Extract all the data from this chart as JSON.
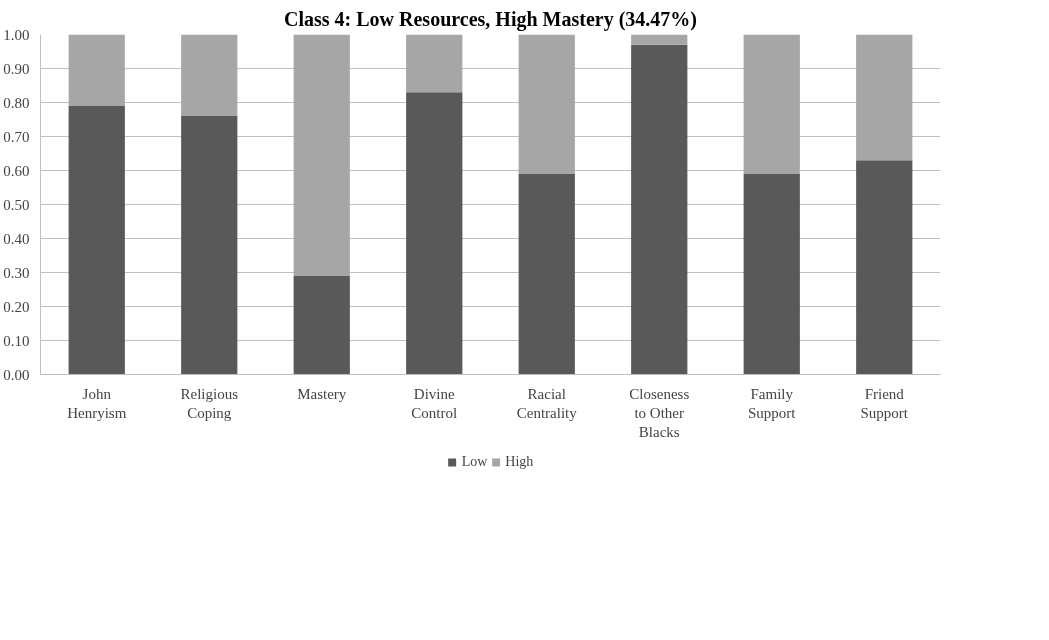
{
  "chart_data": {
    "type": "bar",
    "title": "Class 4: Low Resources, High Mastery (34.47%)",
    "stacked": true,
    "categories": [
      "John Henryism",
      "Religious Coping",
      "Mastery",
      "Divine Control",
      "Racial Centrality",
      "Closeness to Other Blacks",
      "Family Support",
      "Friend Support"
    ],
    "series": [
      {
        "name": "Low",
        "color": "#595959",
        "values": [
          0.79,
          0.76,
          0.29,
          0.83,
          0.59,
          0.97,
          0.59,
          0.63
        ]
      },
      {
        "name": "High",
        "color": "#a6a6a6",
        "values": [
          0.21,
          0.24,
          0.71,
          0.17,
          0.41,
          0.03,
          0.41,
          0.37
        ]
      }
    ],
    "ylim": [
      0,
      1
    ],
    "yticks": [
      {
        "value": 0,
        "label": "0.00"
      },
      {
        "value": 0.1,
        "label": "0.10"
      },
      {
        "value": 0.2,
        "label": "0.20"
      },
      {
        "value": 0.3,
        "label": "0.30"
      },
      {
        "value": 0.4,
        "label": "0.40"
      },
      {
        "value": 0.5,
        "label": "0.50"
      },
      {
        "value": 0.6,
        "label": "0.60"
      },
      {
        "value": 0.7,
        "label": "0.70"
      },
      {
        "value": 0.8,
        "label": "0.80"
      },
      {
        "value": 0.9,
        "label": "0.90"
      },
      {
        "value": 1,
        "label": "1.00"
      }
    ],
    "grid": "y",
    "legend": "bottom"
  }
}
